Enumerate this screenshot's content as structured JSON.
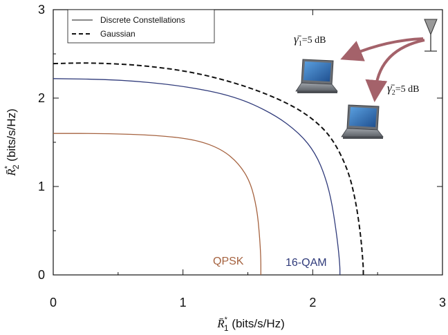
{
  "chart_data": {
    "type": "line",
    "title": "",
    "xlabel": {
      "base": "R̄",
      "sup": "*",
      "sub": "1",
      "unit": " (bits/s/Hz)"
    },
    "ylabel": {
      "base": "R̄",
      "sup": "*",
      "sub": "2",
      "unit": " (bits/s/Hz)"
    },
    "xlim": [
      0,
      3
    ],
    "ylim": [
      0,
      3
    ],
    "xticks": [
      "0",
      "1",
      "2",
      "3"
    ],
    "yticks": [
      "0",
      "1",
      "2",
      "3"
    ],
    "grid": false,
    "legend": {
      "position": "top-left",
      "entries": [
        "Discrete Constellations",
        "Gaussian"
      ]
    },
    "series": [
      {
        "key": "qpsk",
        "label": "QPSK",
        "style": "solid",
        "color": "#a5623f",
        "points": [
          [
            0,
            1.6
          ],
          [
            0.4,
            1.6
          ],
          [
            0.8,
            1.58
          ],
          [
            1.1,
            1.53
          ],
          [
            1.3,
            1.42
          ],
          [
            1.43,
            1.26
          ],
          [
            1.52,
            1.05
          ],
          [
            1.57,
            0.75
          ],
          [
            1.59,
            0.45
          ],
          [
            1.6,
            0.2
          ],
          [
            1.6,
            0
          ]
        ]
      },
      {
        "key": "qam16",
        "label": "16-QAM",
        "style": "solid",
        "color": "#2f3a7a",
        "points": [
          [
            0,
            2.22
          ],
          [
            0.5,
            2.21
          ],
          [
            1.0,
            2.14
          ],
          [
            1.4,
            2.02
          ],
          [
            1.7,
            1.82
          ],
          [
            1.9,
            1.6
          ],
          [
            2.02,
            1.38
          ],
          [
            2.1,
            1.1
          ],
          [
            2.15,
            0.8
          ],
          [
            2.19,
            0.4
          ],
          [
            2.21,
            0.1
          ],
          [
            2.21,
            0
          ]
        ]
      },
      {
        "key": "gaussian",
        "label": "Gaussian",
        "style": "dashed",
        "color": "#111111",
        "points": [
          [
            0,
            2.39
          ],
          [
            0.3,
            2.4
          ],
          [
            0.7,
            2.37
          ],
          [
            1.1,
            2.29
          ],
          [
            1.5,
            2.13
          ],
          [
            1.8,
            1.95
          ],
          [
            2.0,
            1.77
          ],
          [
            2.15,
            1.55
          ],
          [
            2.27,
            1.2
          ],
          [
            2.33,
            0.85
          ],
          [
            2.37,
            0.45
          ],
          [
            2.39,
            0.1
          ],
          [
            2.39,
            0
          ]
        ]
      }
    ],
    "annotations": {
      "gamma1": {
        "sym": "γ̄",
        "sub": "1",
        "value": "=5 dB"
      },
      "gamma2": {
        "sym": "γ̄",
        "sub": "2",
        "value": "=5 dB"
      }
    },
    "colors": {
      "arrow": "#a4626a",
      "laptop_screen": "#2a6fb0",
      "laptop_body": "#7e8288"
    }
  }
}
